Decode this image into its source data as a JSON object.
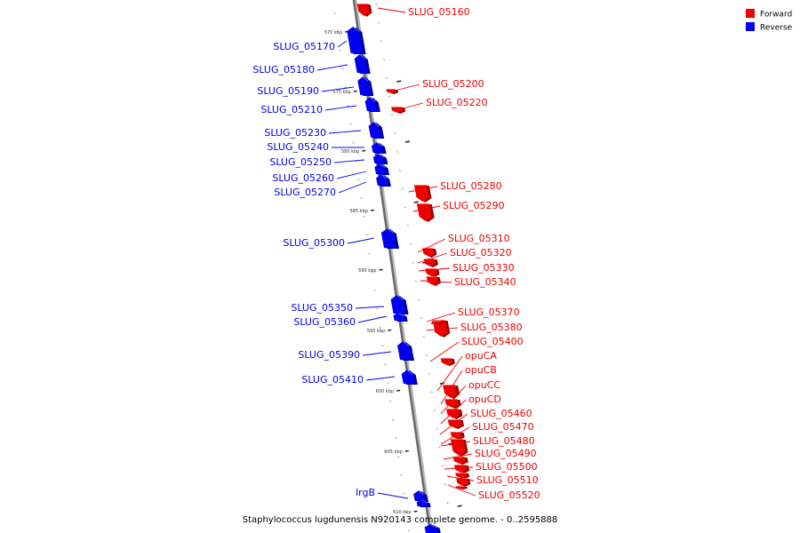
{
  "legend": [
    {
      "label": "Forward",
      "color": "#ee0000"
    },
    {
      "label": "Reverse",
      "color": "#0000ee"
    }
  ],
  "caption": "Staphylococcus lugdunensis N920143 complete genome. - 0..2595888",
  "ticks": [
    {
      "label": "570 kbp"
    },
    {
      "label": "575 kbp"
    },
    {
      "label": "580 kbp"
    },
    {
      "label": "585 kbp"
    },
    {
      "label": "590 kbp"
    },
    {
      "label": "595 kbp"
    },
    {
      "label": "600 kbp"
    },
    {
      "label": "605 kbp"
    },
    {
      "label": "610 kbp"
    }
  ],
  "genes_forward": [
    {
      "name": "SLUG_05160"
    },
    {
      "name": "SLUG_05200"
    },
    {
      "name": "SLUG_05220"
    },
    {
      "name": "SLUG_05280"
    },
    {
      "name": "SLUG_05290"
    },
    {
      "name": "SLUG_05310"
    },
    {
      "name": "SLUG_05320"
    },
    {
      "name": "SLUG_05330"
    },
    {
      "name": "SLUG_05340"
    },
    {
      "name": "SLUG_05370"
    },
    {
      "name": "SLUG_05380"
    },
    {
      "name": "SLUG_05400"
    },
    {
      "name": "opuCA"
    },
    {
      "name": "opuCB"
    },
    {
      "name": "opuCC"
    },
    {
      "name": "opuCD"
    },
    {
      "name": "SLUG_05460"
    },
    {
      "name": "SLUG_05470"
    },
    {
      "name": "SLUG_05480"
    },
    {
      "name": "SLUG_05490"
    },
    {
      "name": "SLUG_05500"
    },
    {
      "name": "SLUG_05510"
    },
    {
      "name": "SLUG_05520"
    }
  ],
  "genes_reverse": [
    {
      "name": "SLUG_05170"
    },
    {
      "name": "SLUG_05180"
    },
    {
      "name": "SLUG_05190"
    },
    {
      "name": "SLUG_05210"
    },
    {
      "name": "SLUG_05230"
    },
    {
      "name": "SLUG_05240"
    },
    {
      "name": "SLUG_05250"
    },
    {
      "name": "SLUG_05260"
    },
    {
      "name": "SLUG_05270"
    },
    {
      "name": "SLUG_05300"
    },
    {
      "name": "SLUG_05350"
    },
    {
      "name": "SLUG_05360"
    },
    {
      "name": "SLUG_05390"
    },
    {
      "name": "SLUG_05410"
    },
    {
      "name": "lrgB"
    }
  ]
}
